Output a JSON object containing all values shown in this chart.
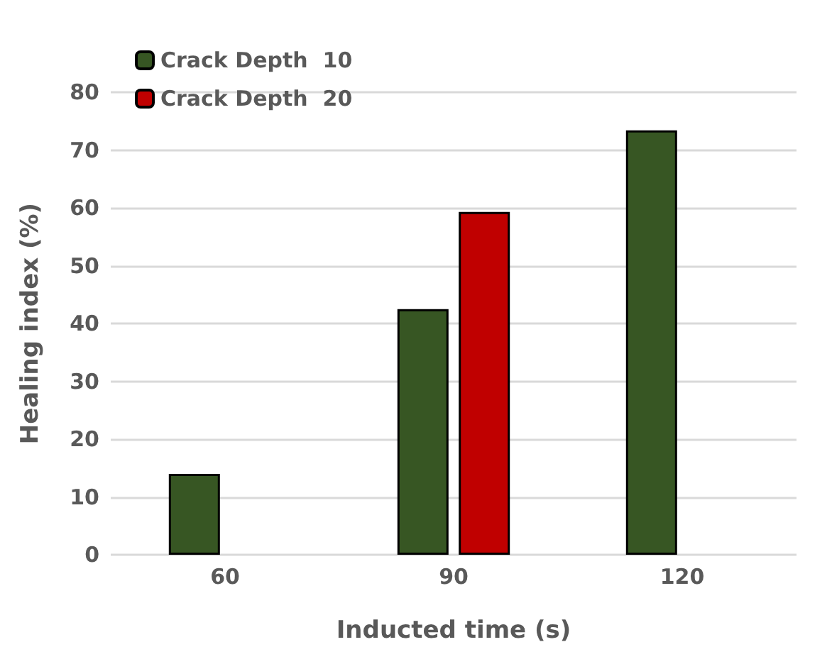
{
  "chart_data": {
    "type": "bar",
    "xlabel": "Inducted time (s)",
    "ylabel": "Healing index (%)",
    "categories": [
      "60",
      "90",
      "120"
    ],
    "series": [
      {
        "name": "Crack Depth  10",
        "color": "#375623",
        "values": [
          14,
          42.5,
          73.4
        ]
      },
      {
        "name": "Crack Depth  20",
        "color": "#c00000",
        "values": [
          null,
          59.3,
          null
        ]
      }
    ],
    "ylim": [
      0,
      80
    ],
    "yticks": [
      0,
      10,
      20,
      30,
      40,
      50,
      60,
      70,
      80
    ],
    "grid": "y",
    "legend": "top left"
  }
}
